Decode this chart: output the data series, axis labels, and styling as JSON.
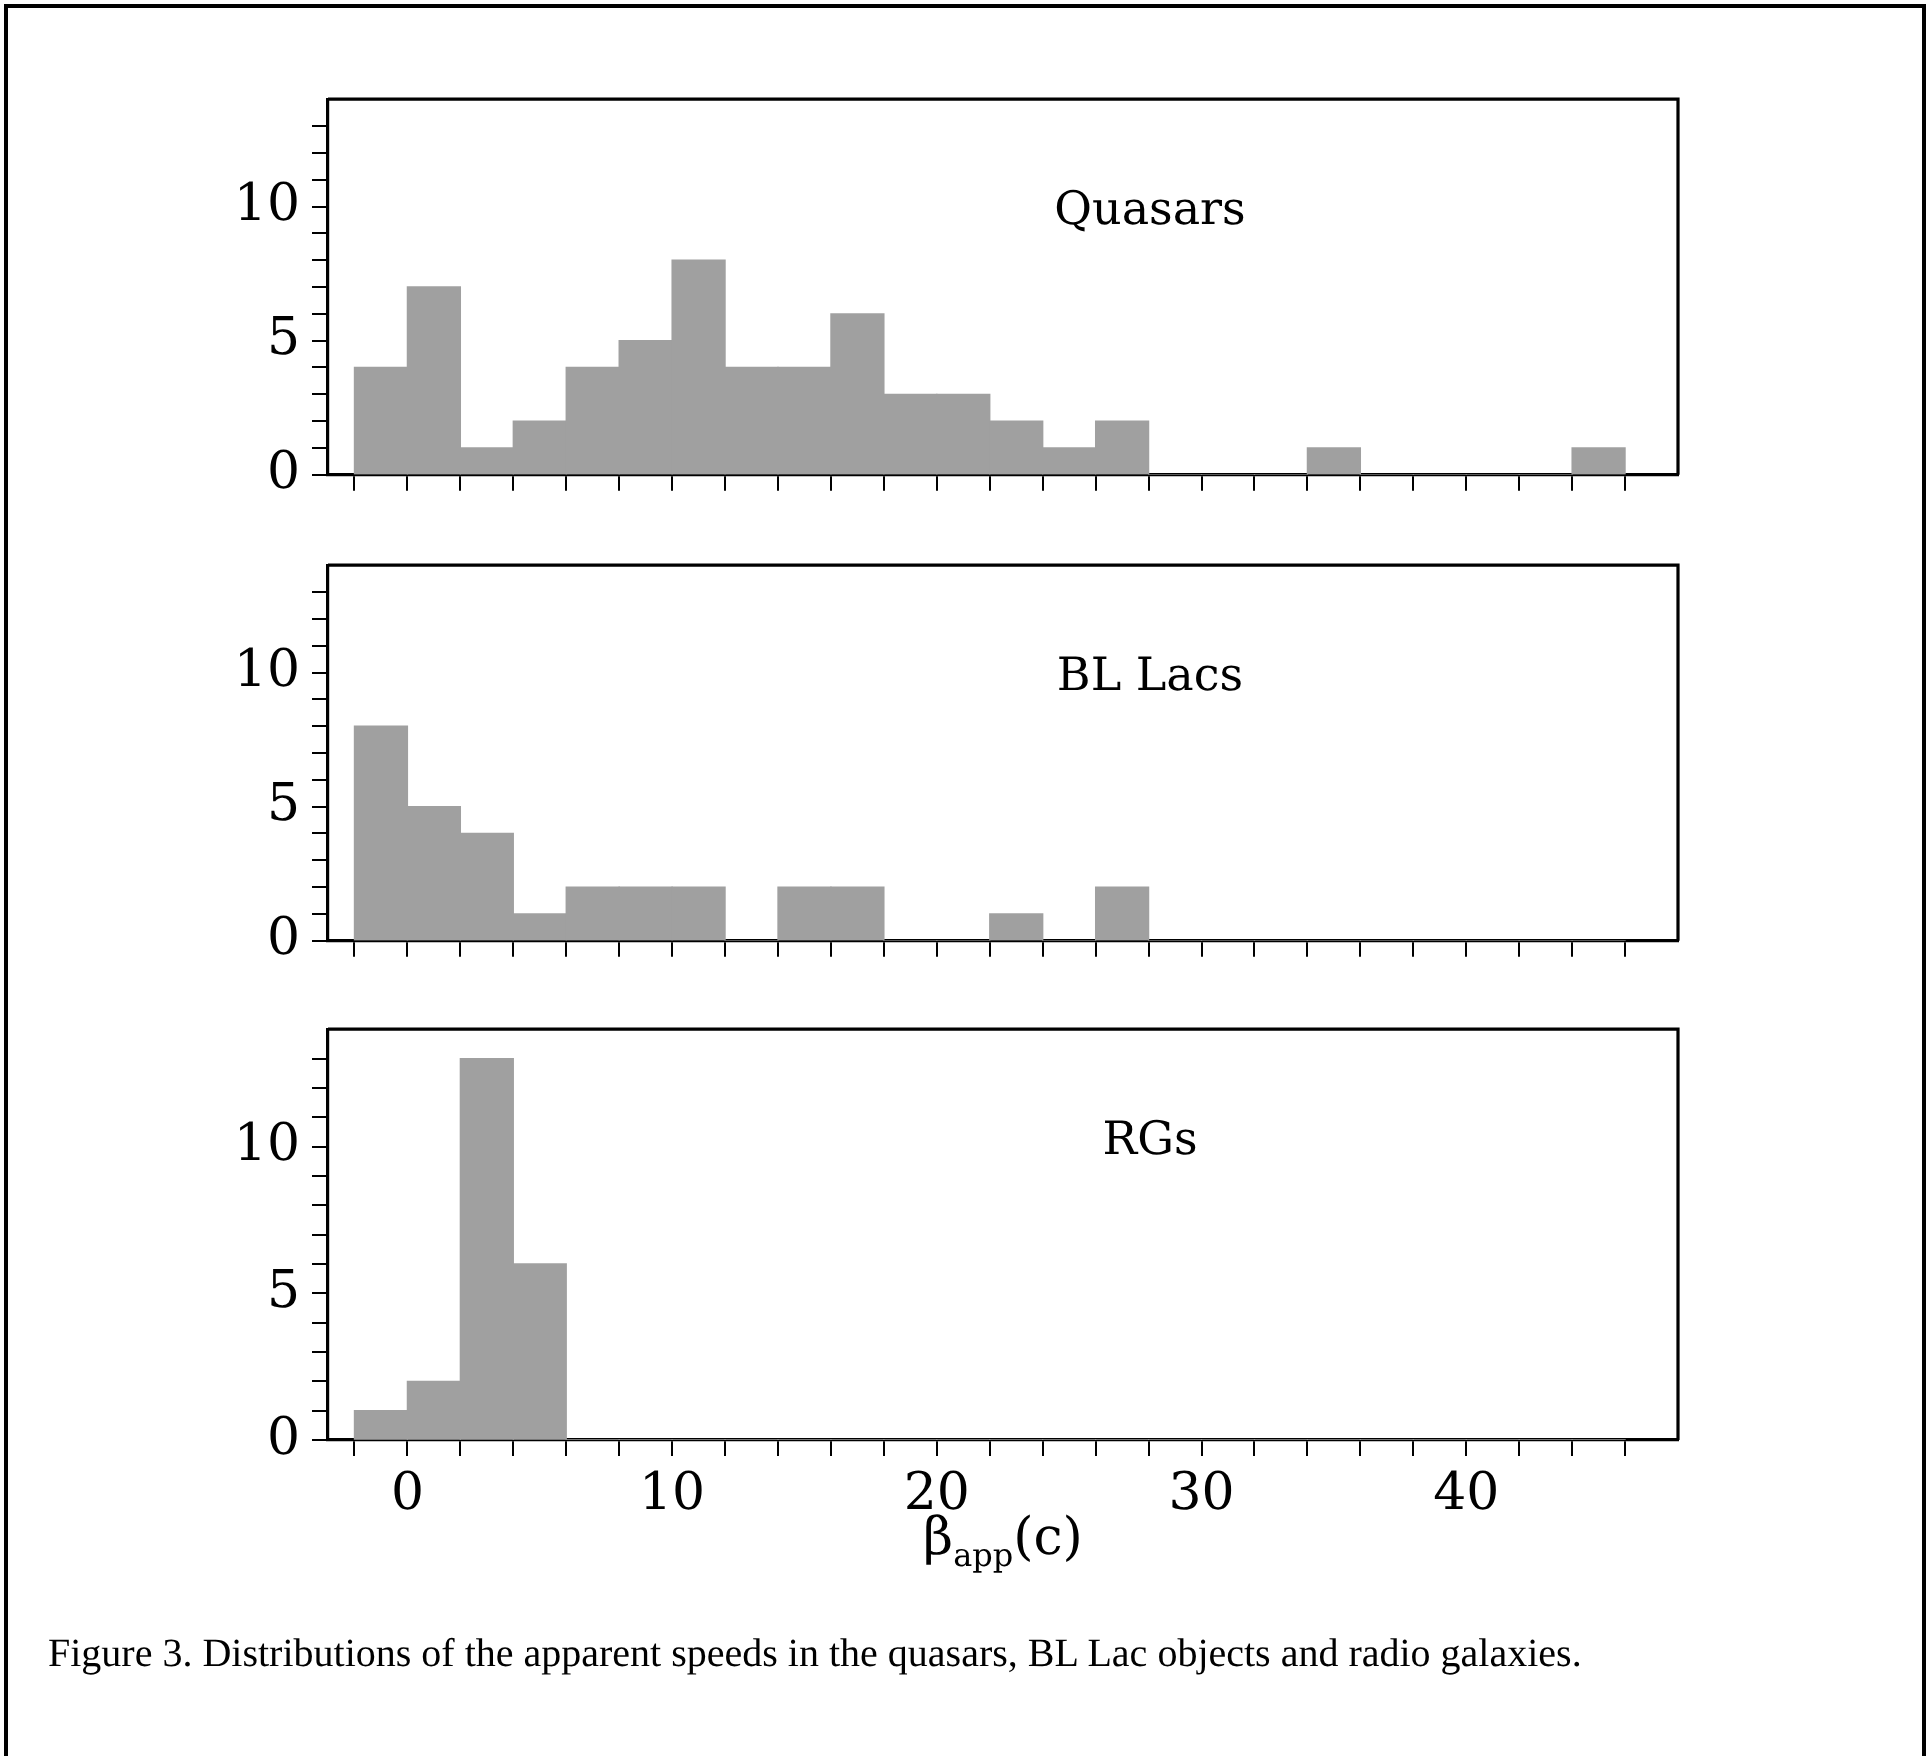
{
  "chart_data": [
    {
      "type": "histogram",
      "bins": [
        -2,
        0,
        2,
        4,
        6,
        8,
        10,
        12,
        14,
        16,
        18,
        20,
        22,
        24,
        26,
        28,
        30,
        32,
        34,
        36,
        38,
        40,
        42,
        44,
        46
      ],
      "values": [
        4,
        7,
        1,
        2,
        4,
        5,
        8,
        4,
        4,
        6,
        3,
        3,
        2,
        1,
        2,
        0,
        0,
        0,
        1,
        0,
        0,
        0,
        0,
        1
      ],
      "color": "#a0a0a0",
      "xlim": [
        -3,
        48
      ],
      "ylim": [
        0,
        14
      ],
      "xticks": [
        {
          "value": -2,
          "label": null
        },
        0,
        {
          "value": 2,
          "label": null
        },
        {
          "value": 4,
          "label": null
        },
        {
          "value": 6,
          "label": null
        },
        {
          "value": 8,
          "label": null
        },
        10,
        {
          "value": 12,
          "label": null
        },
        {
          "value": 14,
          "label": null
        },
        {
          "value": 16,
          "label": null
        },
        {
          "value": 18,
          "label": null
        },
        20,
        {
          "value": 22,
          "label": null
        },
        {
          "value": 24,
          "label": null
        },
        {
          "value": 26,
          "label": null
        },
        {
          "value": 28,
          "label": null
        },
        30,
        {
          "value": 32,
          "label": null
        },
        {
          "value": 34,
          "label": null
        },
        {
          "value": 36,
          "label": null
        },
        {
          "value": 38,
          "label": null
        },
        40,
        {
          "value": 42,
          "label": null
        },
        {
          "value": 44,
          "label": null
        },
        {
          "value": 46,
          "label": null
        }
      ],
      "yticks": [
        0,
        {
          "value": 1,
          "label": null
        },
        {
          "value": 2,
          "label": null
        },
        {
          "value": 3,
          "label": null
        },
        {
          "value": 4,
          "label": null
        },
        5,
        {
          "value": 6,
          "label": null
        },
        {
          "value": 7,
          "label": null
        },
        {
          "value": 8,
          "label": null
        },
        {
          "value": 9,
          "label": null
        },
        10,
        {
          "value": 11,
          "label": null
        },
        {
          "value": 12,
          "label": null
        },
        {
          "value": 13,
          "label": null
        }
      ],
      "tick_labels": "y",
      "annotations": [
        "Quasars"
      ]
    },
    {
      "type": "histogram",
      "bins": [
        -2,
        0,
        2,
        4,
        6,
        8,
        10,
        12,
        14,
        16,
        18,
        20,
        22,
        24,
        26,
        28,
        30,
        32,
        34,
        36,
        38,
        40,
        42,
        44,
        46
      ],
      "values": [
        8,
        5,
        4,
        1,
        2,
        2,
        2,
        0,
        2,
        2,
        0,
        0,
        1,
        0,
        2,
        0,
        0,
        0,
        0,
        0,
        0,
        0,
        0,
        0
      ],
      "color": "#a0a0a0",
      "xlim": [
        -3,
        48
      ],
      "ylim": [
        0,
        14
      ],
      "xticks": [
        {
          "value": -2,
          "label": null
        },
        0,
        {
          "value": 2,
          "label": null
        },
        {
          "value": 4,
          "label": null
        },
        {
          "value": 6,
          "label": null
        },
        {
          "value": 8,
          "label": null
        },
        10,
        {
          "value": 12,
          "label": null
        },
        {
          "value": 14,
          "label": null
        },
        {
          "value": 16,
          "label": null
        },
        {
          "value": 18,
          "label": null
        },
        20,
        {
          "value": 22,
          "label": null
        },
        {
          "value": 24,
          "label": null
        },
        {
          "value": 26,
          "label": null
        },
        {
          "value": 28,
          "label": null
        },
        30,
        {
          "value": 32,
          "label": null
        },
        {
          "value": 34,
          "label": null
        },
        {
          "value": 36,
          "label": null
        },
        {
          "value": 38,
          "label": null
        },
        40,
        {
          "value": 42,
          "label": null
        },
        {
          "value": 44,
          "label": null
        },
        {
          "value": 46,
          "label": null
        }
      ],
      "yticks": [
        0,
        {
          "value": 1,
          "label": null
        },
        {
          "value": 2,
          "label": null
        },
        {
          "value": 3,
          "label": null
        },
        {
          "value": 4,
          "label": null
        },
        5,
        {
          "value": 6,
          "label": null
        },
        {
          "value": 7,
          "label": null
        },
        {
          "value": 8,
          "label": null
        },
        {
          "value": 9,
          "label": null
        },
        10,
        {
          "value": 11,
          "label": null
        },
        {
          "value": 12,
          "label": null
        },
        {
          "value": 13,
          "label": null
        }
      ],
      "tick_labels": "y",
      "annotations": [
        "BL Lacs"
      ]
    },
    {
      "type": "histogram",
      "bins": [
        -2,
        0,
        2,
        4,
        6,
        8,
        10,
        12,
        14,
        16,
        18,
        20,
        22,
        24,
        26,
        28,
        30,
        32,
        34,
        36,
        38,
        40,
        42,
        44,
        46
      ],
      "values": [
        1,
        2,
        13,
        6,
        0,
        0,
        0,
        0,
        0,
        0,
        0,
        0,
        0,
        0,
        0,
        0,
        0,
        0,
        0,
        0,
        0,
        0,
        0,
        0
      ],
      "color": "#a0a0a0",
      "xlim": [
        -3,
        48
      ],
      "ylim": [
        0,
        14
      ],
      "xticks": [
        {
          "value": -2,
          "label": null
        },
        0,
        {
          "value": 2,
          "label": null
        },
        {
          "value": 4,
          "label": null
        },
        {
          "value": 6,
          "label": null
        },
        {
          "value": 8,
          "label": null
        },
        10,
        {
          "value": 12,
          "label": null
        },
        {
          "value": 14,
          "label": null
        },
        {
          "value": 16,
          "label": null
        },
        {
          "value": 18,
          "label": null
        },
        20,
        {
          "value": 22,
          "label": null
        },
        {
          "value": 24,
          "label": null
        },
        {
          "value": 26,
          "label": null
        },
        {
          "value": 28,
          "label": null
        },
        30,
        {
          "value": 32,
          "label": null
        },
        {
          "value": 34,
          "label": null
        },
        {
          "value": 36,
          "label": null
        },
        {
          "value": 38,
          "label": null
        },
        40,
        {
          "value": 42,
          "label": null
        },
        {
          "value": 44,
          "label": null
        },
        {
          "value": 46,
          "label": null
        }
      ],
      "yticks": [
        0,
        {
          "value": 1,
          "label": null
        },
        {
          "value": 2,
          "label": null
        },
        {
          "value": 3,
          "label": null
        },
        {
          "value": 4,
          "label": null
        },
        5,
        {
          "value": 6,
          "label": null
        },
        {
          "value": 7,
          "label": null
        },
        {
          "value": 8,
          "label": null
        },
        {
          "value": 9,
          "label": null
        },
        10,
        {
          "value": 11,
          "label": null
        },
        {
          "value": 12,
          "label": null
        },
        {
          "value": 13,
          "label": null
        }
      ],
      "xlabel": "β$_{app}$(c)",
      "annotations": [
        "RGs",
        "Figure 3. Distributions of the apparent speeds in the quasars, BL Lac objects and radio galaxies."
      ]
    }
  ]
}
